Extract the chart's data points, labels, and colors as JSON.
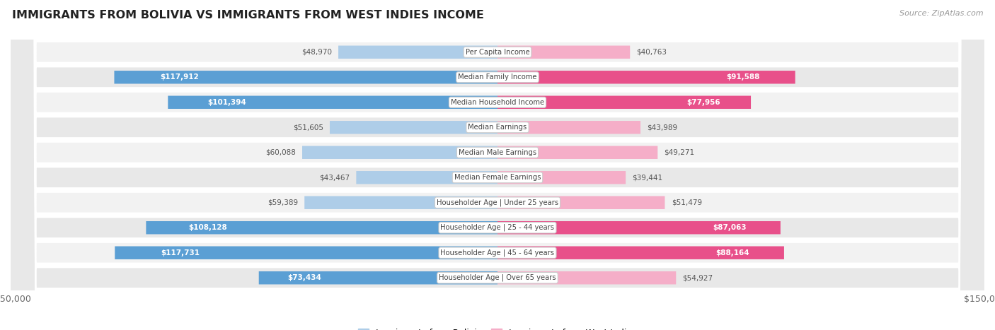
{
  "title": "IMMIGRANTS FROM BOLIVIA VS IMMIGRANTS FROM WEST INDIES INCOME",
  "source": "Source: ZipAtlas.com",
  "categories": [
    "Per Capita Income",
    "Median Family Income",
    "Median Household Income",
    "Median Earnings",
    "Median Male Earnings",
    "Median Female Earnings",
    "Householder Age | Under 25 years",
    "Householder Age | 25 - 44 years",
    "Householder Age | 45 - 64 years",
    "Householder Age | Over 65 years"
  ],
  "bolivia_values": [
    48970,
    117912,
    101394,
    51605,
    60088,
    43467,
    59389,
    108128,
    117731,
    73434
  ],
  "west_indies_values": [
    40763,
    91588,
    77956,
    43989,
    49271,
    39441,
    51479,
    87063,
    88164,
    54927
  ],
  "bolivia_labels": [
    "$48,970",
    "$117,912",
    "$101,394",
    "$51,605",
    "$60,088",
    "$43,467",
    "$59,389",
    "$108,128",
    "$117,731",
    "$73,434"
  ],
  "west_indies_labels": [
    "$40,763",
    "$91,588",
    "$77,956",
    "$43,989",
    "$49,271",
    "$39,441",
    "$51,479",
    "$87,063",
    "$88,164",
    "$54,927"
  ],
  "max_value": 150000,
  "bolivia_color_light": "#aecde8",
  "bolivia_color_dark": "#5b9fd4",
  "west_indies_color_light": "#f5aec8",
  "west_indies_color_dark": "#e8508a",
  "background_color": "#ffffff",
  "row_bg_light": "#f2f2f2",
  "row_bg_dark": "#e8e8e8",
  "bar_height": 0.52,
  "inside_label_threshold": 65000,
  "legend_bolivia": "Immigrants from Bolivia",
  "legend_west_indies": "Immigrants from West Indies"
}
